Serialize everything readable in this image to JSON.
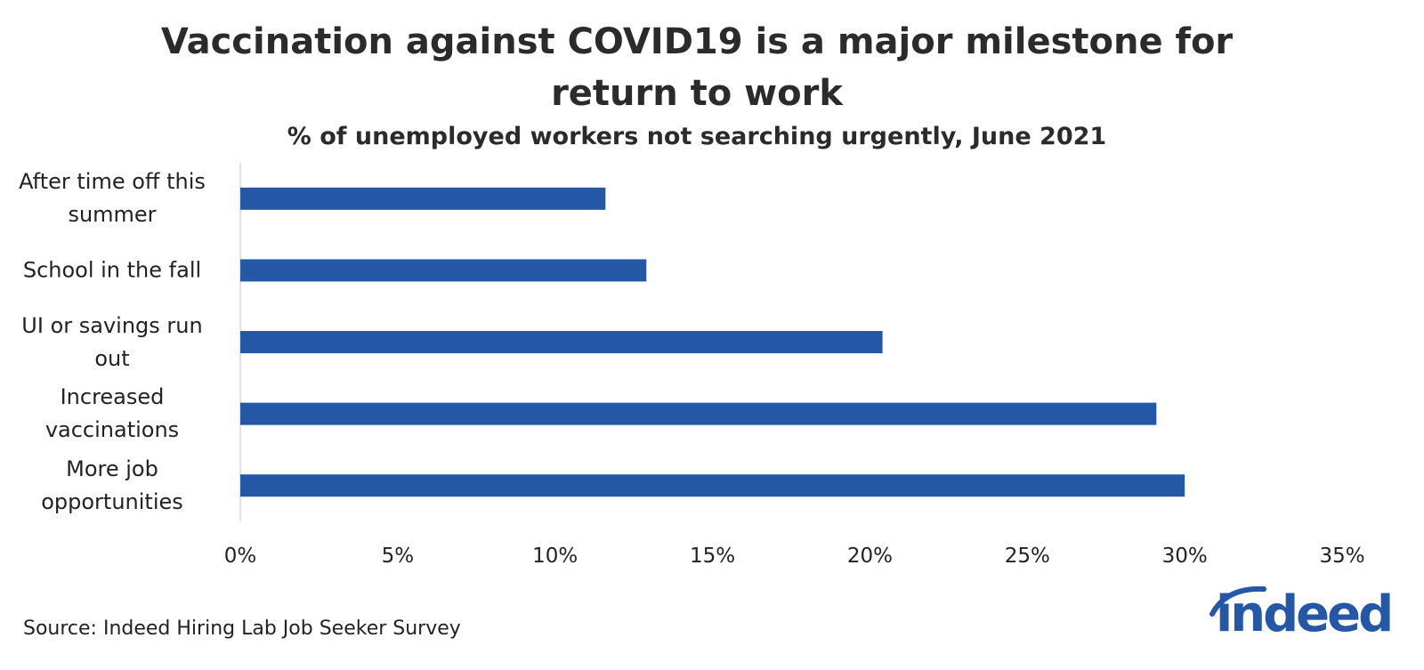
{
  "chart_data": {
    "type": "bar",
    "orientation": "horizontal",
    "title": "Vaccination against COVID19 is a major milestone for return to work",
    "subtitle": "% of unemployed workers not searching urgently, June 2021",
    "source": "Source: Indeed Hiring Lab Job Seeker Survey",
    "categories": [
      "After time off this summer",
      "School in the fall",
      "UI or savings run out",
      "Increased vaccinations",
      "More job opportunities"
    ],
    "values": [
      11.6,
      12.9,
      20.4,
      29.1,
      30.0
    ],
    "color": "#2457a6",
    "xlim": [
      0,
      35
    ],
    "xticks": [
      {
        "value": 0,
        "label": "0%"
      },
      {
        "value": 5,
        "label": "5%"
      },
      {
        "value": 10,
        "label": "10%"
      },
      {
        "value": 15,
        "label": "15%"
      },
      {
        "value": 20,
        "label": "20%"
      },
      {
        "value": 25,
        "label": "25%"
      },
      {
        "value": 30,
        "label": "30%"
      },
      {
        "value": 35,
        "label": "35%"
      }
    ],
    "grid": false
  },
  "logo": "indeed"
}
